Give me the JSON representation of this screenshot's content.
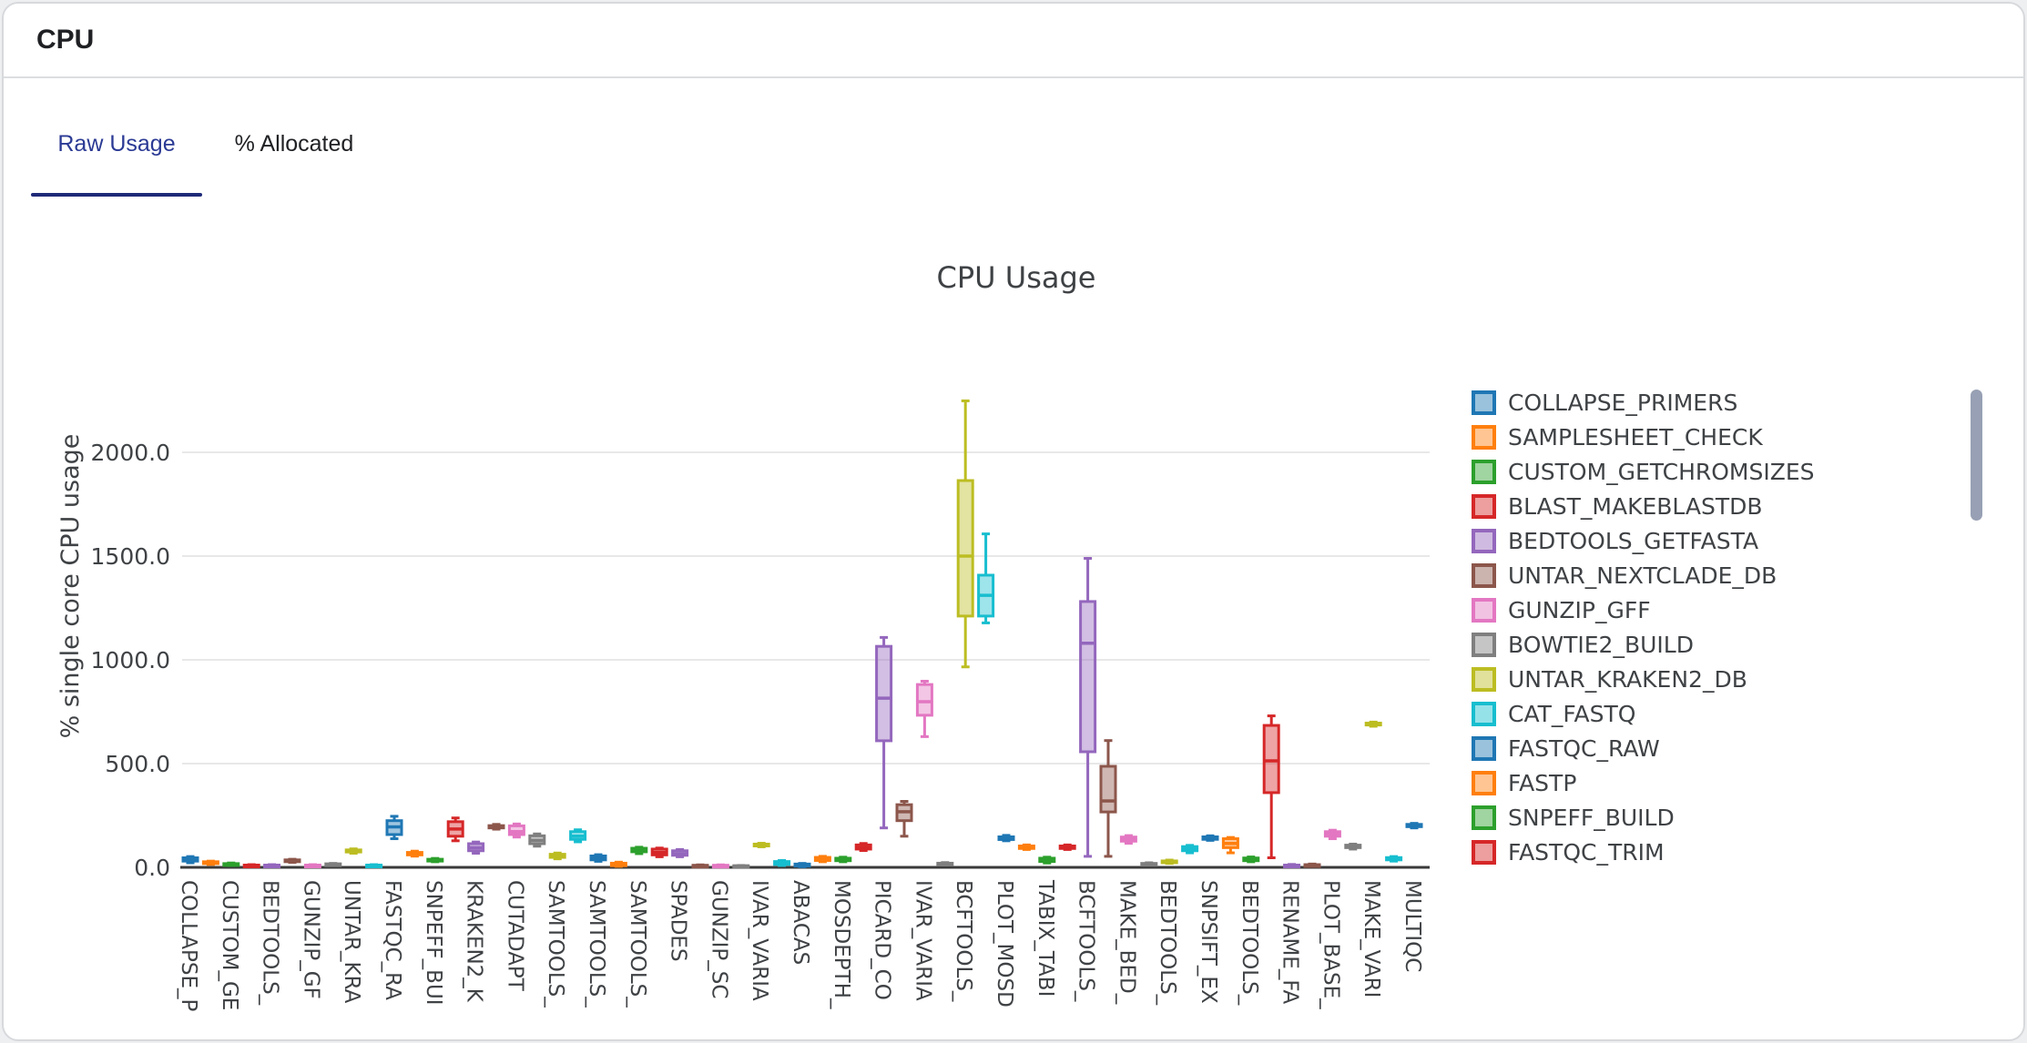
{
  "header": {
    "title": "CPU"
  },
  "tabs": [
    {
      "label": "Raw Usage",
      "active": true
    },
    {
      "label": "% Allocated",
      "active": false
    }
  ],
  "colors": {
    "accent_tab_text": "#2b3a94",
    "tab_underline": "#1e2a78",
    "header_text": "#1f2023",
    "chart_text": "#3f4245",
    "grid": "#e8e8e8",
    "axis": "#3a3a3a",
    "card_border": "#d7d9dc",
    "scrollbar": "#97a0b4"
  },
  "legend": {
    "items": [
      {
        "label": "COLLAPSE_PRIMERS",
        "color_index": 0
      },
      {
        "label": "SAMPLESHEET_CHECK",
        "color_index": 1
      },
      {
        "label": "CUSTOM_GETCHROMSIZES",
        "color_index": 2
      },
      {
        "label": "BLAST_MAKEBLASTDB",
        "color_index": 3
      },
      {
        "label": "BEDTOOLS_GETFASTA",
        "color_index": 4
      },
      {
        "label": "UNTAR_NEXTCLADE_DB",
        "color_index": 5
      },
      {
        "label": "GUNZIP_GFF",
        "color_index": 6
      },
      {
        "label": "BOWTIE2_BUILD",
        "color_index": 7
      },
      {
        "label": "UNTAR_KRAKEN2_DB",
        "color_index": 8
      },
      {
        "label": "CAT_FASTQ",
        "color_index": 9
      },
      {
        "label": "FASTQC_RAW",
        "color_index": 0
      },
      {
        "label": "FASTP",
        "color_index": 1
      },
      {
        "label": "SNPEFF_BUILD",
        "color_index": 2
      },
      {
        "label": "FASTQC_TRIM",
        "color_index": 3
      }
    ]
  },
  "chart_data": {
    "type": "boxplot",
    "title": "CPU Usage",
    "ylabel": "% single core CPU usage",
    "ytick_labels": [
      "0.0",
      "500.0",
      "1000.0",
      "1500.0",
      "2000.0"
    ],
    "ytick_values": [
      0,
      500,
      1000,
      1500,
      2000
    ],
    "ylim": [
      0,
      2330
    ],
    "grid": "horizontal-only",
    "legend_position": "right",
    "palette": [
      "#1f77b4",
      "#ff7f0e",
      "#2ca02c",
      "#d62728",
      "#9467bd",
      "#8c564b",
      "#e377c2",
      "#7f7f7f",
      "#bcbd22",
      "#17becf"
    ],
    "x_tick_labels": [
      "COLLAPSE_P",
      "CUSTOM_GE",
      "BEDTOOLS_",
      "GUNZIP_GF",
      "UNTAR_KRA",
      "FASTQC_RA",
      "SNPEFF_BUI",
      "KRAKEN2_K",
      "CUTADAPT",
      "SAMTOOLS_",
      "SAMTOOLS_",
      "SAMTOOLS_",
      "SPADES",
      "GUNZIP_SC",
      "IVAR_VARIA",
      "ABACAS",
      "MOSDEPTH_",
      "PICARD_CO",
      "IVAR_VARIA",
      "BCFTOOLS_",
      "PLOT_MOSD",
      "TABIX_TABI",
      "BCFTOOLS_",
      "MAKE_BED_",
      "BEDTOOLS_",
      "SNPSIFT_EX",
      "BEDTOOLS_",
      "RENAME_FA",
      "PLOT_BASE_",
      "MAKE_VARI",
      "MULTIQC"
    ],
    "boxes": [
      {
        "tick": "COLLAPSE_P",
        "color": 0,
        "values": [
          22,
          30,
          38,
          46,
          52
        ]
      },
      {
        "tick": "",
        "color": 1,
        "values": [
          14,
          18,
          22,
          27,
          30
        ]
      },
      {
        "tick": "CUSTOM_GE",
        "color": 2,
        "values": [
          9,
          12,
          15,
          18,
          21
        ]
      },
      {
        "tick": "",
        "color": 3,
        "values": [
          5,
          7,
          9,
          11,
          13
        ]
      },
      {
        "tick": "BEDTOOLS_",
        "color": 4,
        "values": [
          5,
          7,
          9,
          11,
          13
        ]
      },
      {
        "tick": "",
        "color": 5,
        "values": [
          24,
          28,
          32,
          36,
          39
        ]
      },
      {
        "tick": "GUNZIP_GF",
        "color": 6,
        "values": [
          5,
          7,
          9,
          11,
          13
        ]
      },
      {
        "tick": "",
        "color": 7,
        "values": [
          9,
          11,
          14,
          17,
          19
        ]
      },
      {
        "tick": "UNTAR_KRA",
        "color": 8,
        "values": [
          68,
          74,
          79,
          84,
          89
        ]
      },
      {
        "tick": "",
        "color": 9,
        "values": [
          5,
          7,
          9,
          11,
          13
        ]
      },
      {
        "tick": "FASTQC_RA",
        "color": 0,
        "values": [
          138,
          158,
          195,
          225,
          246
        ]
      },
      {
        "tick": "",
        "color": 1,
        "values": [
          54,
          60,
          65,
          72,
          78
        ]
      },
      {
        "tick": "SNPEFF_BUI",
        "color": 2,
        "values": [
          27,
          31,
          35,
          39,
          43
        ]
      },
      {
        "tick": "",
        "color": 3,
        "values": [
          128,
          150,
          185,
          220,
          238
        ]
      },
      {
        "tick": "KRAKEN2_K",
        "color": 4,
        "values": [
          68,
          80,
          95,
          114,
          122
        ]
      },
      {
        "tick": "",
        "color": 5,
        "values": [
          184,
          190,
          196,
          201,
          207
        ]
      },
      {
        "tick": "CUTADAPT",
        "color": 6,
        "values": [
          146,
          158,
          172,
          200,
          209
        ]
      },
      {
        "tick": "",
        "color": 7,
        "values": [
          102,
          114,
          130,
          152,
          161
        ]
      },
      {
        "tick": "SAMTOOLS_",
        "color": 8,
        "values": [
          41,
          48,
          55,
          63,
          69
        ]
      },
      {
        "tick": "",
        "color": 9,
        "values": [
          123,
          135,
          150,
          172,
          181
        ]
      },
      {
        "tick": "SAMTOOLS_",
        "color": 0,
        "values": [
          29,
          36,
          44,
          55,
          61
        ]
      },
      {
        "tick": "",
        "color": 1,
        "values": [
          5,
          8,
          13,
          20,
          25
        ]
      },
      {
        "tick": "SAMTOOLS_",
        "color": 2,
        "values": [
          66,
          75,
          84,
          92,
          97
        ]
      },
      {
        "tick": "",
        "color": 3,
        "values": [
          51,
          60,
          72,
          88,
          93
        ]
      },
      {
        "tick": "SPADES",
        "color": 4,
        "values": [
          51,
          58,
          66,
          80,
          86
        ]
      },
      {
        "tick": "",
        "color": 5,
        "values": [
          4,
          6,
          8,
          10,
          12
        ]
      },
      {
        "tick": "GUNZIP_SC",
        "color": 6,
        "values": [
          4,
          6,
          8,
          10,
          12
        ]
      },
      {
        "tick": "",
        "color": 7,
        "values": [
          3,
          5,
          6,
          8,
          9
        ]
      },
      {
        "tick": "IVAR_VARIA",
        "color": 8,
        "values": [
          99,
          104,
          108,
          112,
          116
        ]
      },
      {
        "tick": "",
        "color": 9,
        "values": [
          9,
          14,
          20,
          28,
          33
        ]
      },
      {
        "tick": "ABACAS",
        "color": 0,
        "values": [
          3,
          6,
          10,
          16,
          19
        ]
      },
      {
        "tick": "",
        "color": 1,
        "values": [
          27,
          33,
          40,
          48,
          53
        ]
      },
      {
        "tick": "MOSDEPTH_",
        "color": 2,
        "values": [
          27,
          32,
          38,
          44,
          49
        ]
      },
      {
        "tick": "",
        "color": 3,
        "values": [
          81,
          88,
          95,
          108,
          115
        ]
      },
      {
        "tick": "PICARD_CO",
        "color": 4,
        "values": [
          190,
          610,
          815,
          1065,
          1108
        ]
      },
      {
        "tick": "",
        "color": 5,
        "values": [
          150,
          225,
          268,
          302,
          318
        ]
      },
      {
        "tick": "IVAR_VARIA",
        "color": 6,
        "values": [
          630,
          733,
          798,
          881,
          897
        ]
      },
      {
        "tick": "",
        "color": 7,
        "values": [
          11,
          14,
          17,
          20,
          23
        ]
      },
      {
        "tick": "BCFTOOLS_",
        "color": 8,
        "values": [
          966,
          1211,
          1500,
          1864,
          2248
        ]
      },
      {
        "tick": "",
        "color": 9,
        "values": [
          1178,
          1211,
          1311,
          1408,
          1607
        ]
      },
      {
        "tick": "PLOT_MOSD",
        "color": 0,
        "values": [
          128,
          134,
          140,
          147,
          154
        ]
      },
      {
        "tick": "",
        "color": 1,
        "values": [
          86,
          91,
          97,
          103,
          108
        ]
      },
      {
        "tick": "TABIX_TABI",
        "color": 2,
        "values": [
          21,
          28,
          35,
          44,
          49
        ]
      },
      {
        "tick": "",
        "color": 3,
        "values": [
          86,
          91,
          97,
          103,
          108
        ]
      },
      {
        "tick": "BCFTOOLS_",
        "color": 4,
        "values": [
          53,
          557,
          1080,
          1281,
          1489
        ]
      },
      {
        "tick": "",
        "color": 5,
        "values": [
          53,
          267,
          320,
          487,
          611
        ]
      },
      {
        "tick": "MAKE_BED_",
        "color": 6,
        "values": [
          116,
          126,
          135,
          146,
          153
        ]
      },
      {
        "tick": "",
        "color": 7,
        "values": [
          11,
          13,
          16,
          19,
          22
        ]
      },
      {
        "tick": "BEDTOOLS_",
        "color": 8,
        "values": [
          19,
          23,
          27,
          31,
          35
        ]
      },
      {
        "tick": "",
        "color": 9,
        "values": [
          70,
          80,
          90,
          100,
          106
        ]
      },
      {
        "tick": "SNPSIFT_EX",
        "color": 0,
        "values": [
          130,
          135,
          141,
          147,
          152
        ]
      },
      {
        "tick": "",
        "color": 1,
        "values": [
          70,
          95,
          115,
          138,
          144
        ]
      },
      {
        "tick": "BEDTOOLS_",
        "color": 2,
        "values": [
          27,
          32,
          38,
          45,
          50
        ]
      },
      {
        "tick": "",
        "color": 3,
        "values": [
          46,
          360,
          513,
          684,
          730
        ]
      },
      {
        "tick": "RENAME_FA",
        "color": 4,
        "values": [
          3,
          6,
          8,
          11,
          14
        ]
      },
      {
        "tick": "",
        "color": 5,
        "values": [
          5,
          8,
          10,
          13,
          16
        ]
      },
      {
        "tick": "PLOT_BASE_",
        "color": 6,
        "values": [
          138,
          150,
          160,
          172,
          179
        ]
      },
      {
        "tick": "",
        "color": 7,
        "values": [
          88,
          95,
          100,
          107,
          112
        ]
      },
      {
        "tick": "MAKE_VARI",
        "color": 8,
        "values": [
          680,
          686,
          690,
          695,
          700
        ]
      },
      {
        "tick": "",
        "color": 9,
        "values": [
          30,
          36,
          41,
          47,
          52
        ]
      },
      {
        "tick": "MULTIQC",
        "color": 0,
        "values": [
          190,
          196,
          201,
          207,
          212
        ]
      }
    ]
  }
}
